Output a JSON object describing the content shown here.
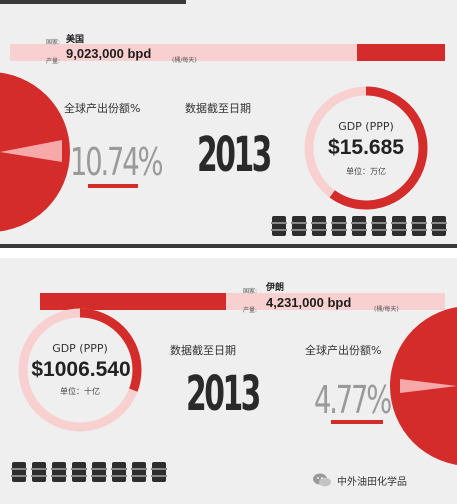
{
  "us": {
    "country_label": "国家:",
    "country": "美国",
    "production_label": "产量:",
    "production": "9,023,000 bpd",
    "production_unit": "(桶/每天)",
    "share_title": "全球产出份额%",
    "share_value": "10.74%",
    "share_fraction": 0.1074,
    "date_title": "数据截至日期",
    "year": "2013",
    "gdp_label": "GDP (PPP)",
    "gdp_value": "$15.685",
    "gdp_unit": "单位：万亿"
  },
  "iran": {
    "country_label": "国家:",
    "country": "伊朗",
    "production_label": "产量:",
    "production": "4,231,000 bpd",
    "production_unit": "(桶/每天)",
    "gdp_label": "GDP (PPP)",
    "gdp_value": "$1006.540",
    "gdp_unit": "单位：十亿",
    "date_title": "数据截至日期",
    "year": "2013",
    "share_title": "全球产出份额%",
    "share_value": "4.77%",
    "share_fraction": 0.0477
  },
  "watermark": {
    "text": "中外油田化学品",
    "icon": "wechat-icon"
  },
  "colors": {
    "accent_red": "#d42b2b",
    "light_pink": "#f9d0d0",
    "panel_bg": "#efefef",
    "dark": "#2d2d2d"
  }
}
